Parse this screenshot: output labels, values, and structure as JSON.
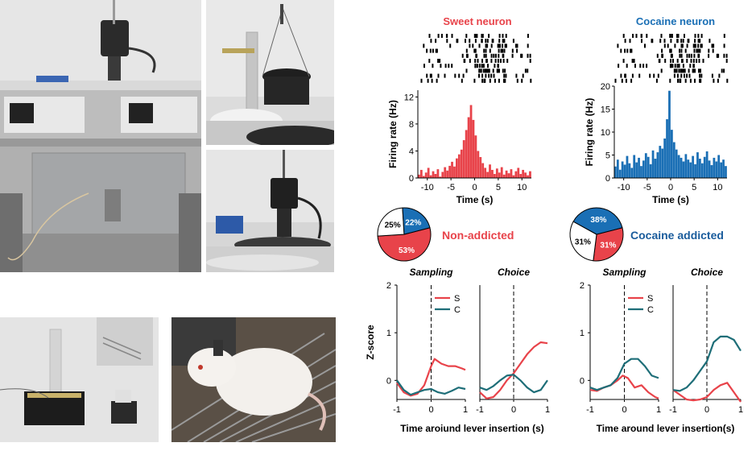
{
  "colors": {
    "sweet": "#e8434a",
    "cocaine": "#1a6fb5",
    "choice_c": "#1e6e78",
    "addicted_label": "#1a5c9c"
  },
  "photos": [
    {
      "name": "rig-top-photo",
      "content": "lab-setup-syringe-pumps"
    },
    {
      "name": "commutator-photo-1",
      "content": "commutator-on-stand"
    },
    {
      "name": "commutator-photo-2",
      "content": "commutator-with-box"
    },
    {
      "name": "electrode-photo",
      "content": "implant-electrode-array"
    },
    {
      "name": "rat-photo",
      "content": "rat-on-grid-floor"
    }
  ],
  "chart_data": [
    {
      "type": "bar",
      "title": "Sweet neuron",
      "xlabel": "Time (s)",
      "ylabel": "Firing rate (Hz)",
      "xlim": [
        -12,
        12
      ],
      "ylim": [
        0,
        13
      ],
      "xticks": [
        "-10",
        "-5",
        "0",
        "5",
        "10"
      ],
      "yticks": [
        "0",
        "4",
        "8",
        "12"
      ],
      "color": "sweet",
      "x": [
        -12,
        -11.5,
        -11,
        -10.5,
        -10,
        -9.5,
        -9,
        -8.5,
        -8,
        -7.5,
        -7,
        -6.5,
        -6,
        -5.5,
        -5,
        -4.5,
        -4,
        -3.5,
        -3,
        -2.5,
        -2,
        -1.5,
        -1,
        -0.5,
        0,
        0.5,
        1,
        1.5,
        2,
        2.5,
        3,
        3.5,
        4,
        4.5,
        5,
        5.5,
        6,
        6.5,
        7,
        7.5,
        8,
        8.5,
        9,
        9.5,
        10,
        10.5,
        11,
        11.5
      ],
      "values": [
        0.5,
        1.2,
        0.3,
        0.8,
        1.5,
        0.4,
        1.0,
        0.6,
        1.3,
        0.2,
        0.9,
        1.6,
        1.1,
        1.8,
        2.4,
        1.7,
        2.9,
        3.5,
        4.2,
        5.6,
        7.1,
        9.0,
        10.8,
        8.6,
        6.3,
        4.0,
        3.1,
        2.2,
        1.5,
        0.9,
        2.0,
        1.2,
        0.6,
        1.4,
        0.8,
        1.6,
        0.5,
        1.1,
        0.7,
        1.3,
        0.4,
        1.0,
        1.5,
        0.6,
        1.2,
        0.8,
        0.4,
        1.0
      ]
    },
    {
      "type": "bar",
      "title": "Cocaine neuron",
      "xlabel": "Time (s)",
      "ylabel": "Firing rate (Hz)",
      "xlim": [
        -12,
        12
      ],
      "ylim": [
        0,
        20
      ],
      "xticks": [
        "-10",
        "-5",
        "0",
        "5",
        "10"
      ],
      "yticks": [
        "0",
        "5",
        "10",
        "15",
        "20"
      ],
      "color": "cocaine",
      "x": [
        -12,
        -11.5,
        -11,
        -10.5,
        -10,
        -9.5,
        -9,
        -8.5,
        -8,
        -7.5,
        -7,
        -6.5,
        -6,
        -5.5,
        -5,
        -4.5,
        -4,
        -3.5,
        -3,
        -2.5,
        -2,
        -1.5,
        -1,
        -0.5,
        0,
        0.5,
        1,
        1.5,
        2,
        2.5,
        3,
        3.5,
        4,
        4.5,
        5,
        5.5,
        6,
        6.5,
        7,
        7.5,
        8,
        8.5,
        9,
        9.5,
        10,
        10.5,
        11,
        11.5
      ],
      "values": [
        2.5,
        4.0,
        1.8,
        3.6,
        2.9,
        4.8,
        3.2,
        2.2,
        5.0,
        3.4,
        4.4,
        2.6,
        3.8,
        5.4,
        4.6,
        3.0,
        6.0,
        4.2,
        5.6,
        7.0,
        6.4,
        8.6,
        12.8,
        19.0,
        10.5,
        7.8,
        6.2,
        5.0,
        4.4,
        3.6,
        5.2,
        4.0,
        3.4,
        4.8,
        3.0,
        5.6,
        4.2,
        3.2,
        4.6,
        5.8,
        3.8,
        2.8,
        4.4,
        3.6,
        5.0,
        3.4,
        4.0,
        2.6
      ]
    },
    {
      "type": "pie",
      "label": "Non-addicted",
      "slices": [
        {
          "label": "53%",
          "value": 53,
          "color": "sweet"
        },
        {
          "label": "25%",
          "value": 25,
          "color": "#ffffff"
        },
        {
          "label": "22%",
          "value": 22,
          "color": "cocaine"
        }
      ]
    },
    {
      "type": "pie",
      "label": "Cocaine addicted",
      "slices": [
        {
          "label": "31%",
          "value": 31,
          "color": "sweet"
        },
        {
          "label": "31%",
          "value": 31,
          "color": "#ffffff"
        },
        {
          "label": "38%",
          "value": 38,
          "color": "cocaine"
        }
      ]
    },
    {
      "type": "line",
      "group": "non-addicted",
      "panels": [
        "Sampling",
        "Choice"
      ],
      "ylabel": "Z-score",
      "xlabel": "Time aroiund lever insertion (s)",
      "xlim": [
        -1,
        1
      ],
      "ylim": [
        -0.4,
        2
      ],
      "yticks": [
        "0",
        "1",
        "2"
      ],
      "xticks": [
        "-1",
        "0",
        "1"
      ],
      "series": [
        {
          "name": "S",
          "color": "sweet",
          "sampling": [
            [
              -1,
              -0.05
            ],
            [
              -0.8,
              -0.25
            ],
            [
              -0.6,
              -0.32
            ],
            [
              -0.4,
              -0.28
            ],
            [
              -0.2,
              -0.1
            ],
            [
              0,
              0.3
            ],
            [
              0.1,
              0.45
            ],
            [
              0.3,
              0.35
            ],
            [
              0.5,
              0.3
            ],
            [
              0.7,
              0.3
            ],
            [
              0.9,
              0.25
            ],
            [
              1,
              0.22
            ]
          ],
          "choice": [
            [
              -1,
              -0.25
            ],
            [
              -0.8,
              -0.38
            ],
            [
              -0.6,
              -0.35
            ],
            [
              -0.4,
              -0.2
            ],
            [
              -0.2,
              0.0
            ],
            [
              0,
              0.15
            ],
            [
              0.2,
              0.35
            ],
            [
              0.4,
              0.55
            ],
            [
              0.6,
              0.7
            ],
            [
              0.8,
              0.8
            ],
            [
              1,
              0.78
            ]
          ]
        },
        {
          "name": "C",
          "color": "choice_c",
          "sampling": [
            [
              -1,
              0.0
            ],
            [
              -0.8,
              -0.2
            ],
            [
              -0.6,
              -0.3
            ],
            [
              -0.4,
              -0.25
            ],
            [
              -0.2,
              -0.2
            ],
            [
              0,
              -0.18
            ],
            [
              0.2,
              -0.25
            ],
            [
              0.4,
              -0.28
            ],
            [
              0.6,
              -0.22
            ],
            [
              0.8,
              -0.15
            ],
            [
              1,
              -0.18
            ]
          ],
          "choice": [
            [
              -1,
              -0.15
            ],
            [
              -0.8,
              -0.2
            ],
            [
              -0.6,
              -0.12
            ],
            [
              -0.4,
              0.0
            ],
            [
              -0.2,
              0.1
            ],
            [
              0,
              0.12
            ],
            [
              0.2,
              0.0
            ],
            [
              0.4,
              -0.15
            ],
            [
              0.6,
              -0.25
            ],
            [
              0.8,
              -0.2
            ],
            [
              1,
              0.0
            ]
          ]
        }
      ]
    },
    {
      "type": "line",
      "group": "cocaine-addicted",
      "panels": [
        "Sampling",
        "Choice"
      ],
      "xlabel": "Time around lever insertion(s)",
      "xlim": [
        -1,
        1
      ],
      "ylim": [
        -0.4,
        2
      ],
      "yticks": [
        "0",
        "1",
        "2"
      ],
      "xticks": [
        "-1",
        "0",
        "1"
      ],
      "series": [
        {
          "name": "S",
          "color": "sweet",
          "sampling": [
            [
              -1,
              -0.2
            ],
            [
              -0.8,
              -0.22
            ],
            [
              -0.6,
              -0.15
            ],
            [
              -0.4,
              -0.1
            ],
            [
              -0.2,
              0.0
            ],
            [
              -0.05,
              0.1
            ],
            [
              0.1,
              0.05
            ],
            [
              0.3,
              -0.15
            ],
            [
              0.5,
              -0.1
            ],
            [
              0.7,
              -0.25
            ],
            [
              0.9,
              -0.35
            ],
            [
              1,
              -0.38
            ]
          ],
          "choice": [
            [
              -1,
              -0.2
            ],
            [
              -0.8,
              -0.3
            ],
            [
              -0.6,
              -0.4
            ],
            [
              -0.4,
              -0.42
            ],
            [
              -0.2,
              -0.4
            ],
            [
              0,
              -0.35
            ],
            [
              0.2,
              -0.2
            ],
            [
              0.4,
              -0.1
            ],
            [
              0.6,
              -0.05
            ],
            [
              0.8,
              -0.25
            ],
            [
              1,
              -0.45
            ]
          ]
        },
        {
          "name": "C",
          "color": "choice_c",
          "sampling": [
            [
              -1,
              -0.15
            ],
            [
              -0.8,
              -0.2
            ],
            [
              -0.6,
              -0.15
            ],
            [
              -0.4,
              -0.1
            ],
            [
              -0.2,
              0.05
            ],
            [
              0,
              0.35
            ],
            [
              0.2,
              0.45
            ],
            [
              0.4,
              0.45
            ],
            [
              0.6,
              0.3
            ],
            [
              0.8,
              0.1
            ],
            [
              1,
              0.05
            ]
          ],
          "choice": [
            [
              -1,
              -0.2
            ],
            [
              -0.8,
              -0.22
            ],
            [
              -0.6,
              -0.15
            ],
            [
              -0.4,
              0.0
            ],
            [
              -0.2,
              0.2
            ],
            [
              0,
              0.4
            ],
            [
              0.2,
              0.8
            ],
            [
              0.4,
              0.92
            ],
            [
              0.6,
              0.92
            ],
            [
              0.8,
              0.85
            ],
            [
              1,
              0.62
            ]
          ]
        }
      ]
    }
  ]
}
